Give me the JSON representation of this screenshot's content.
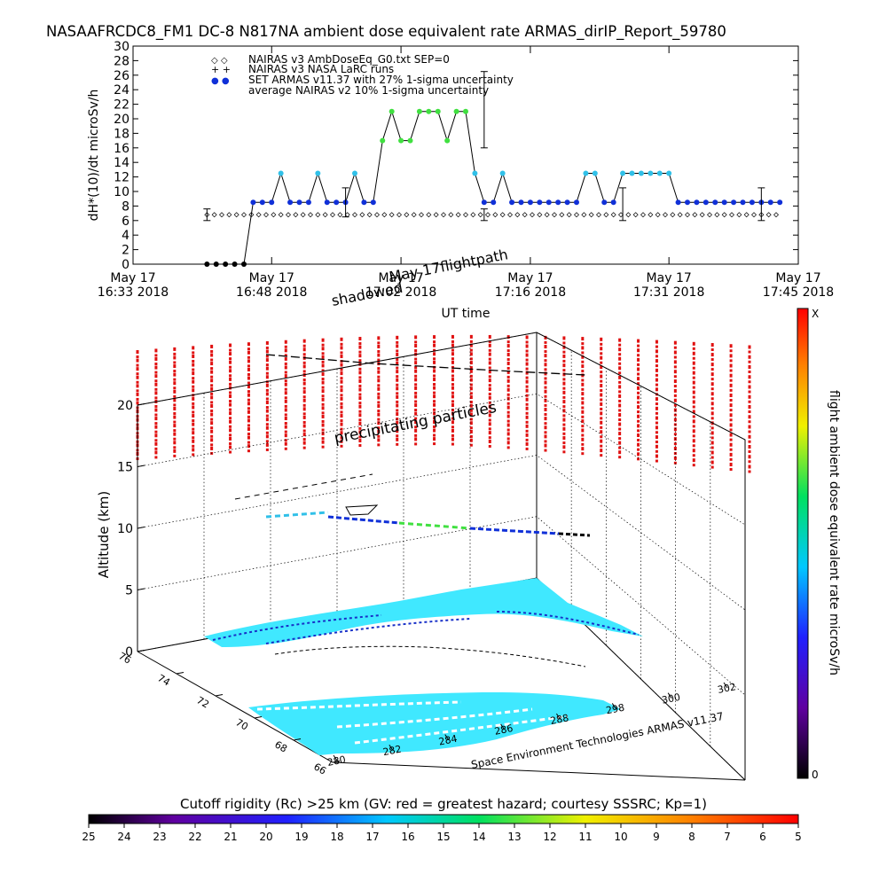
{
  "title": "NASAAFRCDC8_FM1 DC-8   N817NA ambient dose equivalent rate ARMAS_dirIP_Report_59780",
  "colors": {
    "armas_low": "#1030d8",
    "armas_mid": "#30c0e8",
    "armas_high": "#40e040",
    "precip_particles": "#e01010",
    "cutoff_fill": "#40e8ff"
  },
  "chart_data": [
    {
      "type": "scatter",
      "xlabel": "UT time",
      "ylabel": "dH*(10)/dt microSv/h",
      "ylim": [
        0,
        30
      ],
      "y_ticks": [
        "0",
        "2",
        "4",
        "6",
        "8",
        "10",
        "12",
        "14",
        "16",
        "18",
        "20",
        "22",
        "24",
        "26",
        "28",
        "30"
      ],
      "x_ticks": [
        {
          "line1": "May 17",
          "line2": "16:33 2018"
        },
        {
          "line1": "May 17",
          "line2": "16:48 2018"
        },
        {
          "line1": "May 17",
          "line2": "17:02 2018"
        },
        {
          "line1": "May 17",
          "line2": "17:16 2018"
        },
        {
          "line1": "May 17",
          "line2": "17:31 2018"
        },
        {
          "line1": "May 17",
          "line2": "17:45 2018"
        }
      ],
      "legend_position": "top-left",
      "legend": [
        {
          "symbol": "◇ ◇",
          "label": "NAIRAS v3 AmbDoseEq_G0.txt SEP=0"
        },
        {
          "symbol": "+ +",
          "label": "NAIRAS v3 NASA LaRC runs"
        },
        {
          "symbol": "● ●",
          "label": "SET ARMAS v11.37 with 27% 1-sigma uncertainty"
        },
        {
          "symbol": "I",
          "label": "average NAIRAS v2 10% 1-sigma uncertainty"
        }
      ],
      "series": [
        {
          "name": "SET ARMAS v11.37 with 27% 1-sigma uncertainty",
          "x_minutes_after_1633": [
            8,
            9,
            10,
            11,
            12,
            13,
            14,
            15,
            16,
            17,
            18,
            19,
            20,
            21,
            22,
            23,
            24,
            25,
            26,
            27,
            28,
            29,
            30,
            31,
            32,
            33,
            34,
            35,
            36,
            37,
            38,
            39,
            40,
            41,
            42,
            43,
            44,
            45,
            46,
            47,
            48,
            49,
            50,
            51,
            52,
            53,
            54,
            55,
            56,
            57,
            58,
            59,
            60,
            61,
            62,
            63,
            64,
            65,
            66,
            67,
            68,
            69,
            70
          ],
          "values": [
            0,
            0,
            0,
            0,
            0,
            8.5,
            8.5,
            8.5,
            12.5,
            8.5,
            8.5,
            8.5,
            12.5,
            8.5,
            8.5,
            8.5,
            12.5,
            8.5,
            8.5,
            17,
            21,
            17,
            17,
            21,
            21,
            21,
            17,
            21,
            21,
            12.5,
            8.5,
            8.5,
            12.5,
            8.5,
            8.5,
            8.5,
            8.5,
            8.5,
            8.5,
            8.5,
            8.5,
            12.5,
            12.5,
            8.5,
            8.5,
            12.5,
            12.5,
            12.5,
            12.5,
            12.5,
            12.5,
            8.5,
            8.5,
            8.5,
            8.5,
            8.5,
            8.5,
            8.5,
            8.5,
            8.5,
            8.5,
            8.5,
            8.5
          ]
        },
        {
          "name": "NAIRAS v3 AmbDoseEq_G0.txt SEP=0",
          "value": 6.8
        }
      ],
      "error_bars": [
        {
          "x_minutes_after_1633": 8,
          "value": 6.8,
          "low": 6.0,
          "high": 7.6
        },
        {
          "x_minutes_after_1633": 23,
          "value": 8.5,
          "low": 6.5,
          "high": 10.5
        },
        {
          "x_minutes_after_1633": 38,
          "value": 21,
          "low": 16,
          "high": 26.5
        },
        {
          "x_minutes_after_1633": 38,
          "value": 6.8,
          "low": 6.0,
          "high": 7.6
        },
        {
          "x_minutes_after_1633": 53,
          "value": 8.5,
          "low": 6.0,
          "high": 10.5
        },
        {
          "x_minutes_after_1633": 68,
          "value": 8.5,
          "low": 6.0,
          "high": 10.5
        }
      ]
    },
    {
      "type": "3d-trajectory",
      "zlabel": "Altitude (km)",
      "z_ticks": [
        "0",
        "5",
        "10",
        "15",
        "20"
      ],
      "lat_ticks": [
        "76",
        "74",
        "72",
        "70",
        "68",
        "66"
      ],
      "lon_ticks": [
        "280",
        "282",
        "284",
        "286",
        "288",
        "298",
        "300",
        "302"
      ],
      "annotations": {
        "flightpath": "May 17flightpath",
        "shadow": "shadowed",
        "precip": "precipitating particles",
        "credit": "Space Environment Technologies ARMAS v11.37"
      },
      "colorbar": {
        "label": "flight ambient dose equivalent rate microSv/h",
        "top": "X",
        "bottom": "0"
      }
    },
    {
      "type": "colorbar",
      "title": "Cutoff rigidity (Rc) >25 km (GV: red = greatest hazard; courtesy SSSRC; Kp=1)",
      "ticks": [
        "25",
        "24",
        "23",
        "22",
        "21",
        "20",
        "19",
        "18",
        "17",
        "16",
        "15",
        "14",
        "13",
        "12",
        "11",
        "10",
        "9",
        "8",
        "7",
        "6",
        "5"
      ]
    }
  ]
}
